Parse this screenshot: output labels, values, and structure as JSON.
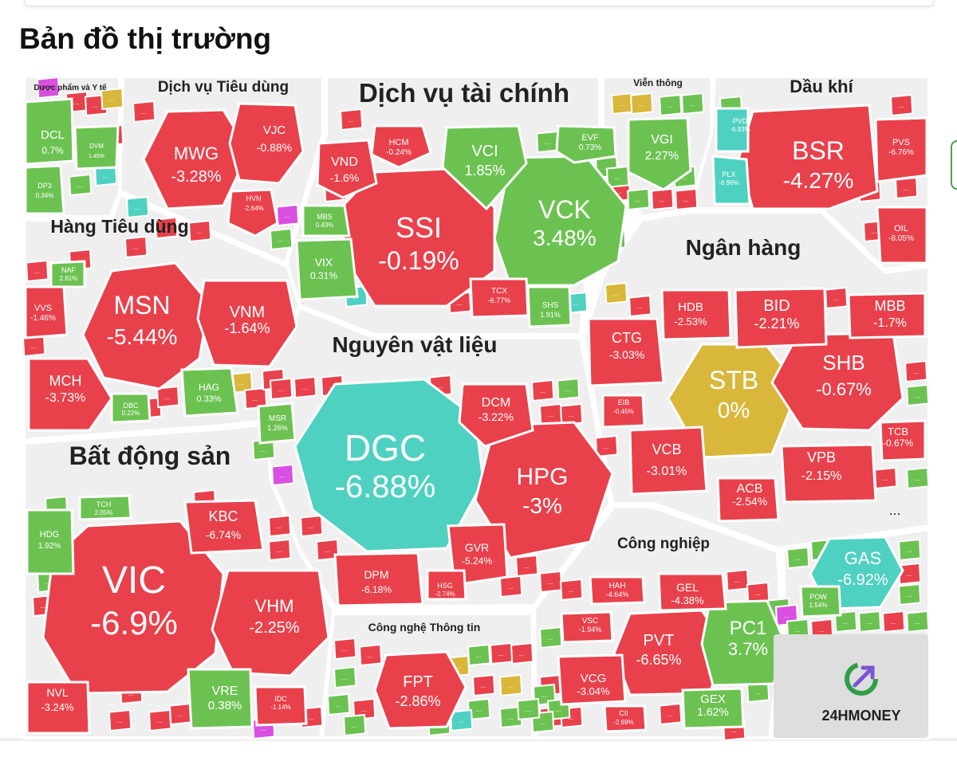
{
  "page": {
    "title": "Bản đồ thị trường"
  },
  "brand": {
    "logo_text": "24HMONEY",
    "logo_color": "#2f9e46"
  },
  "colors": {
    "down": "#e8414b",
    "up": "#6cc251",
    "floor": "#4fd1c1",
    "ref": "#d9b73a",
    "ceiling": "#d94fe0",
    "sector_bg": "#efefef"
  },
  "chart_data": {
    "type": "treemap",
    "title": "Bản đồ thị trường",
    "sectors": [
      {
        "name": "Dược phẩm và Y tế",
        "tiles": [
          {
            "ticker": "DCL",
            "change": "0.7%",
            "status": "up"
          },
          {
            "ticker": "DVM",
            "change": "1.45%",
            "status": "up"
          },
          {
            "ticker": "DP3",
            "change": "0.34%",
            "status": "up"
          }
        ]
      },
      {
        "name": "Dịch vụ Tiêu dùng",
        "tiles": [
          {
            "ticker": "MWG",
            "change": "-3.28%",
            "status": "down"
          },
          {
            "ticker": "VJC",
            "change": "-0.88%",
            "status": "down"
          },
          {
            "ticker": "HVN",
            "change": "-2.64%",
            "status": "down"
          }
        ]
      },
      {
        "name": "Dịch vụ tài chính",
        "tiles": [
          {
            "ticker": "SSI",
            "change": "-0.19%",
            "status": "down"
          },
          {
            "ticker": "VCK",
            "change": "3.48%",
            "status": "up"
          },
          {
            "ticker": "VCI",
            "change": "1.85%",
            "status": "up"
          },
          {
            "ticker": "VND",
            "change": "-1.6%",
            "status": "down"
          },
          {
            "ticker": "HCM",
            "change": "-0.24%",
            "status": "down"
          },
          {
            "ticker": "EVF",
            "change": "0.73%",
            "status": "up"
          },
          {
            "ticker": "MBS",
            "change": "0.43%",
            "status": "up"
          },
          {
            "ticker": "VIX",
            "change": "0.31%",
            "status": "up"
          },
          {
            "ticker": "TCX",
            "change": "-6.77%",
            "status": "down"
          },
          {
            "ticker": "SHS",
            "change": "1.91%",
            "status": "up"
          }
        ]
      },
      {
        "name": "Viễn thông",
        "tiles": [
          {
            "ticker": "VGI",
            "change": "2.27%",
            "status": "up"
          }
        ]
      },
      {
        "name": "Dầu khí",
        "tiles": [
          {
            "ticker": "BSR",
            "change": "-4.27%",
            "status": "down"
          },
          {
            "ticker": "PVD",
            "change": "-6.93%",
            "status": "floor"
          },
          {
            "ticker": "PLX",
            "change": "-6.96%",
            "status": "floor"
          },
          {
            "ticker": "PVS",
            "change": "-6.76%",
            "status": "down"
          },
          {
            "ticker": "OIL",
            "change": "-8.05%",
            "status": "down"
          }
        ]
      },
      {
        "name": "Hàng Tiêu dùng",
        "tiles": [
          {
            "ticker": "MSN",
            "change": "-5.44%",
            "status": "down"
          },
          {
            "ticker": "VNM",
            "change": "-1.64%",
            "status": "down"
          },
          {
            "ticker": "MCH",
            "change": "-3.73%",
            "status": "down"
          },
          {
            "ticker": "VVS",
            "change": "-1.46%",
            "status": "down"
          },
          {
            "ticker": "NAF",
            "change": "2.61%",
            "status": "up"
          },
          {
            "ticker": "HAG",
            "change": "0.33%",
            "status": "up"
          },
          {
            "ticker": "DBC",
            "change": "0.22%",
            "status": "up"
          }
        ]
      },
      {
        "name": "Nguyên vật liệu",
        "tiles": [
          {
            "ticker": "DGC",
            "change": "-6.88%",
            "status": "floor"
          },
          {
            "ticker": "HPG",
            "change": "-3%",
            "status": "down"
          },
          {
            "ticker": "DCM",
            "change": "-3.22%",
            "status": "down"
          },
          {
            "ticker": "GVR",
            "change": "-5.24%",
            "status": "down"
          },
          {
            "ticker": "DPM",
            "change": "-6.18%",
            "status": "down"
          },
          {
            "ticker": "HSG",
            "change": "-2.74%",
            "status": "down"
          },
          {
            "ticker": "MSR",
            "change": "1.26%",
            "status": "up"
          }
        ]
      },
      {
        "name": "Ngân hàng",
        "tiles": [
          {
            "ticker": "STB",
            "change": "0%",
            "status": "ref"
          },
          {
            "ticker": "SHB",
            "change": "-0.67%",
            "status": "down"
          },
          {
            "ticker": "BID",
            "change": "-2.21%",
            "status": "down"
          },
          {
            "ticker": "HDB",
            "change": "-2.53%",
            "status": "down"
          },
          {
            "ticker": "MBB",
            "change": "-1.7%",
            "status": "down"
          },
          {
            "ticker": "CTG",
            "change": "-3.03%",
            "status": "down"
          },
          {
            "ticker": "VCB",
            "change": "-3.01%",
            "status": "down"
          },
          {
            "ticker": "ACB",
            "change": "-2.54%",
            "status": "down"
          },
          {
            "ticker": "VPB",
            "change": "-2.15%",
            "status": "down"
          },
          {
            "ticker": "TCB",
            "change": "-0.67%",
            "status": "down"
          },
          {
            "ticker": "EIB",
            "change": "-0.45%",
            "status": "down"
          }
        ]
      },
      {
        "name": "Bất động sản",
        "tiles": [
          {
            "ticker": "VIC",
            "change": "-6.9%",
            "status": "down"
          },
          {
            "ticker": "VHM",
            "change": "-2.25%",
            "status": "down"
          },
          {
            "ticker": "KBC",
            "change": "-6.74%",
            "status": "down"
          },
          {
            "ticker": "TCH",
            "change": "2.05%",
            "status": "up"
          },
          {
            "ticker": "HDG",
            "change": "1.92%",
            "status": "up"
          },
          {
            "ticker": "NVL",
            "change": "-3.24%",
            "status": "down"
          },
          {
            "ticker": "VRE",
            "change": "0.38%",
            "status": "up"
          },
          {
            "ticker": "IDC",
            "change": "-1.14%",
            "status": "down"
          }
        ]
      },
      {
        "name": "Công nghệ Thông tin",
        "tiles": [
          {
            "ticker": "FPT",
            "change": "-2.86%",
            "status": "down"
          }
        ]
      },
      {
        "name": "Công nghiệp",
        "tiles": [
          {
            "ticker": "PVT",
            "change": "-6.65%",
            "status": "down"
          },
          {
            "ticker": "PC1",
            "change": "3.7%",
            "status": "up"
          },
          {
            "ticker": "GEL",
            "change": "-4.38%",
            "status": "down"
          },
          {
            "ticker": "HAH",
            "change": "-4.64%",
            "status": "down"
          },
          {
            "ticker": "VSC",
            "change": "-1.94%",
            "status": "down"
          },
          {
            "ticker": "VCG",
            "change": "-3.04%",
            "status": "down"
          },
          {
            "ticker": "GEX",
            "change": "1.62%",
            "status": "up"
          },
          {
            "ticker": "CII",
            "change": "-2.69%",
            "status": "down"
          }
        ]
      },
      {
        "name": "",
        "tiles": [
          {
            "ticker": "GAS",
            "change": "-6.92%",
            "status": "floor"
          },
          {
            "ticker": "POW",
            "change": "1.54%",
            "status": "up"
          }
        ]
      }
    ],
    "more_marker": "..."
  }
}
